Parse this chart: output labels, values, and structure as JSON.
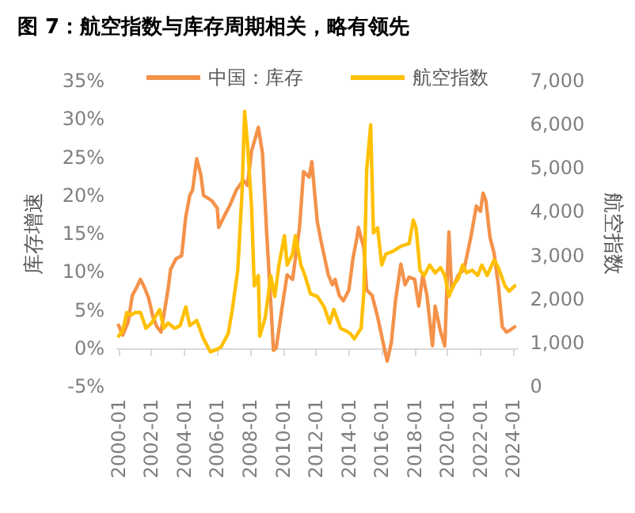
{
  "chart_data": {
    "type": "line",
    "title": "图 7：航空指数与库存周期相关，略有领先",
    "ylabel": "库存增速",
    "y2label": "航空指数",
    "legend": "top",
    "marker": "none",
    "line_style": "solid",
    "xlim": [
      "1999-12",
      "2024-04"
    ],
    "xticks": [
      "2000-01",
      "2002-01",
      "2004-01",
      "2006-01",
      "2008-01",
      "2010-01",
      "2012-01",
      "2014-01",
      "2016-01",
      "2018-01",
      "2020-01",
      "2022-01",
      "2024-01"
    ],
    "ylim": [
      -5,
      35
    ],
    "yticks": [
      {
        "value": -5,
        "label": "-5%"
      },
      {
        "value": 0,
        "label": "0%"
      },
      {
        "value": 5,
        "label": "5%"
      },
      {
        "value": 10,
        "label": "10%"
      },
      {
        "value": 15,
        "label": "15%"
      },
      {
        "value": 20,
        "label": "20%"
      },
      {
        "value": 25,
        "label": "25%"
      },
      {
        "value": 30,
        "label": "30%"
      },
      {
        "value": 35,
        "label": "35%"
      }
    ],
    "y2lim": [
      0,
      7000
    ],
    "y2ticks": [
      0,
      {
        "value": 1000,
        "label": "1,000"
      },
      {
        "value": 2000,
        "label": "2,000"
      },
      {
        "value": 3000,
        "label": "3,000"
      },
      {
        "value": 4000,
        "label": "4,000"
      },
      {
        "value": 5000,
        "label": "5,000"
      },
      {
        "value": 6000,
        "label": "6,000"
      },
      {
        "value": 7000,
        "label": "7,000"
      }
    ],
    "series": [
      {
        "name": "中国：库存",
        "color": "#f4924a",
        "x": [
          "2000-01",
          "2000-04",
          "2000-08",
          "2000-11",
          "2001-02",
          "2001-05",
          "2001-08",
          "2001-11",
          "2002-02",
          "2002-05",
          "2002-08",
          "2003-01",
          "2003-03",
          "2003-07",
          "2003-11",
          "2004-02",
          "2004-05",
          "2004-07",
          "2004-10",
          "2005-01",
          "2005-03",
          "2005-09",
          "2006-01",
          "2006-02",
          "2006-07",
          "2006-10",
          "2007-03",
          "2007-08",
          "2007-11",
          "2008-02",
          "2008-07",
          "2008-10",
          "2009-01",
          "2009-04",
          "2009-06",
          "2009-08",
          "2010-01",
          "2010-04",
          "2010-08",
          "2011-01",
          "2011-04",
          "2011-08",
          "2011-10",
          "2012-02",
          "2012-05",
          "2012-10",
          "2013-01",
          "2013-03",
          "2013-06",
          "2013-09",
          "2014-01",
          "2014-04",
          "2014-07",
          "2014-08",
          "2014-12",
          "2015-02",
          "2015-06",
          "2015-10",
          "2016-02",
          "2016-05",
          "2016-08",
          "2016-11",
          "2017-03",
          "2017-06",
          "2017-09",
          "2018-01",
          "2018-04",
          "2018-07",
          "2018-10",
          "2019-02",
          "2019-04",
          "2019-08",
          "2019-11",
          "2020-02",
          "2020-04",
          "2020-09",
          "2021-01",
          "2021-06",
          "2021-10",
          "2022-01",
          "2022-03",
          "2022-05",
          "2022-08",
          "2022-11",
          "2023-02",
          "2023-05",
          "2023-08",
          "2023-11",
          "2024-02"
        ],
        "values": [
          3.0,
          1.7,
          3.4,
          6.9,
          7.9,
          9.0,
          7.9,
          6.5,
          4.1,
          2.8,
          2.1,
          7.6,
          10.3,
          11.7,
          12.1,
          17.2,
          20,
          20.7,
          24.8,
          22.7,
          20,
          19.3,
          18.3,
          15.8,
          17.6,
          18.6,
          20.7,
          22,
          21.3,
          25.8,
          28.9,
          25.5,
          15.2,
          6.2,
          -0.3,
          0,
          6.2,
          9.6,
          9.0,
          15.8,
          23.1,
          22.4,
          24.4,
          16.5,
          13.8,
          9.6,
          8.3,
          9.0,
          6.9,
          6.2,
          7.6,
          11.7,
          14.5,
          15.8,
          13.1,
          7.6,
          6.9,
          4.1,
          0.7,
          -1.7,
          0.7,
          6.2,
          11.0,
          8.3,
          9.3,
          9.0,
          5.5,
          9.6,
          6.9,
          0.3,
          5.5,
          2.1,
          0.3,
          15.2,
          7.6,
          9.6,
          10.3,
          14.5,
          18.6,
          17.9,
          20.3,
          19.3,
          14.5,
          12.4,
          8.3,
          2.8,
          2.1,
          2.4,
          2.8
        ]
      },
      {
        "name": "航空指数",
        "color": "#ffc000",
        "axis": "y2",
        "x": [
          "2000-01",
          "2000-04",
          "2000-07",
          "2000-10",
          "2001-01",
          "2001-05",
          "2001-09",
          "2002-01",
          "2002-07",
          "2002-10",
          "2003-01",
          "2003-06",
          "2003-10",
          "2004-02",
          "2004-05",
          "2004-10",
          "2005-03",
          "2005-08",
          "2006-01",
          "2006-04",
          "2006-09",
          "2006-12",
          "2007-04",
          "2007-07",
          "2007-09",
          "2007-11",
          "2008-02",
          "2008-04",
          "2008-07",
          "2008-08",
          "2008-12",
          "2009-04",
          "2009-07",
          "2009-10",
          "2010-02",
          "2010-04",
          "2010-08",
          "2010-10",
          "2011-02",
          "2011-05",
          "2011-09",
          "2012-02",
          "2012-07",
          "2012-11",
          "2013-02",
          "2013-07",
          "2013-11",
          "2014-02",
          "2014-05",
          "2014-10",
          "2014-12",
          "2015-02",
          "2015-05",
          "2015-07",
          "2015-10",
          "2016-01",
          "2016-04",
          "2016-09",
          "2017-03",
          "2017-09",
          "2017-12",
          "2018-02",
          "2018-05",
          "2018-08",
          "2018-12",
          "2019-04",
          "2019-08",
          "2019-11",
          "2020-02",
          "2020-05",
          "2020-09",
          "2020-12",
          "2021-03",
          "2021-07",
          "2021-11",
          "2022-02",
          "2022-06",
          "2022-11",
          "2023-02",
          "2023-07",
          "2023-10",
          "2024-02"
        ],
        "values": [
          1150,
          1270,
          1690,
          1630,
          1690,
          1690,
          1330,
          1450,
          1760,
          1330,
          1450,
          1330,
          1390,
          1820,
          1390,
          1510,
          1090,
          790,
          850,
          910,
          1210,
          1760,
          2660,
          4360,
          6300,
          5570,
          4120,
          2300,
          2540,
          1150,
          1570,
          2540,
          2060,
          2780,
          3450,
          2780,
          3030,
          3450,
          2780,
          2540,
          2120,
          2060,
          1820,
          1450,
          1760,
          1330,
          1270,
          1210,
          1090,
          1330,
          2180,
          4960,
          5990,
          3510,
          3630,
          2780,
          3030,
          3090,
          3210,
          3270,
          3810,
          3630,
          2660,
          2540,
          2780,
          2600,
          2720,
          2540,
          2060,
          2300,
          2480,
          2780,
          2600,
          2660,
          2540,
          2780,
          2540,
          2900,
          2720,
          2300,
          2180,
          2300
        ]
      }
    ]
  }
}
